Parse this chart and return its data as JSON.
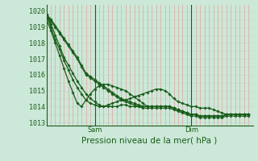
{
  "xlabel": "Pression niveau de la mer( hPa )",
  "bg_color": "#cce8d8",
  "line_color": "#1a5c1a",
  "grid_v_color": "#e89090",
  "grid_h_color": "#b8d8c8",
  "ylim": [
    1012.8,
    1020.4
  ],
  "xlim": [
    0,
    47
  ],
  "sam_x": 11,
  "dim_x": 33,
  "tick_fontsize": 6.0,
  "label_fontsize": 7.5,
  "lines": [
    [
      1019.8,
      1019.5,
      1019.1,
      1018.7,
      1018.3,
      1017.9,
      1017.5,
      1017.1,
      1016.6,
      1016.1,
      1015.9,
      1015.7,
      1015.5,
      1015.3,
      1015.1,
      1014.9,
      1014.7,
      1014.5,
      1014.4,
      1014.3,
      1014.2,
      1014.1,
      1014.0,
      1014.0,
      1014.0,
      1014.0,
      1014.0,
      1014.0,
      1014.0,
      1013.9,
      1013.8,
      1013.7,
      1013.6,
      1013.5,
      1013.5,
      1013.4,
      1013.4,
      1013.4,
      1013.4,
      1013.4,
      1013.4,
      1013.5,
      1013.5,
      1013.5,
      1013.5,
      1013.5,
      1013.5
    ],
    [
      1019.8,
      1019.4,
      1019.0,
      1018.6,
      1018.2,
      1017.8,
      1017.4,
      1017.0,
      1016.5,
      1016.0,
      1015.8,
      1015.6,
      1015.4,
      1015.2,
      1015.0,
      1014.8,
      1014.6,
      1014.4,
      1014.3,
      1014.2,
      1014.1,
      1014.0,
      1013.9,
      1013.9,
      1013.9,
      1013.9,
      1013.9,
      1013.9,
      1013.9,
      1013.8,
      1013.7,
      1013.6,
      1013.5,
      1013.4,
      1013.4,
      1013.3,
      1013.3,
      1013.3,
      1013.3,
      1013.3,
      1013.3,
      1013.4,
      1013.4,
      1013.4,
      1013.4,
      1013.4,
      1013.4
    ],
    [
      1019.8,
      1019.2,
      1018.5,
      1017.8,
      1017.1,
      1016.6,
      1016.1,
      1015.6,
      1015.2,
      1014.8,
      1014.5,
      1014.3,
      1014.1,
      1014.0,
      1014.0,
      1014.0,
      1014.0,
      1014.1,
      1014.1,
      1014.0,
      1014.0,
      1014.0,
      1014.0,
      1014.0,
      1014.0,
      1014.0,
      1014.0,
      1014.0,
      1014.0,
      1013.9,
      1013.8,
      1013.7,
      1013.6,
      1013.5,
      1013.5,
      1013.4,
      1013.4,
      1013.4,
      1013.4,
      1013.4,
      1013.4,
      1013.5,
      1013.5,
      1013.5,
      1013.5,
      1013.5,
      1013.5
    ],
    [
      1019.8,
      1019.0,
      1018.2,
      1017.6,
      1016.9,
      1016.3,
      1015.7,
      1015.2,
      1014.8,
      1014.4,
      1014.2,
      1014.1,
      1014.0,
      1014.0,
      1014.1,
      1014.2,
      1014.3,
      1014.4,
      1014.4,
      1014.5,
      1014.6,
      1014.7,
      1014.8,
      1014.9,
      1015.0,
      1015.1,
      1015.1,
      1015.0,
      1014.8,
      1014.5,
      1014.3,
      1014.2,
      1014.1,
      1014.0,
      1014.0,
      1013.9,
      1013.9,
      1013.9,
      1013.8,
      1013.7,
      1013.6,
      1013.5,
      1013.5,
      1013.5,
      1013.5,
      1013.5,
      1013.5
    ],
    [
      1019.5,
      1018.8,
      1018.0,
      1017.2,
      1016.4,
      1015.6,
      1014.9,
      1014.2,
      1014.0,
      1014.4,
      1014.8,
      1015.1,
      1015.3,
      1015.4,
      1015.4,
      1015.3,
      1015.2,
      1015.1,
      1015.0,
      1014.8,
      1014.6,
      1014.4,
      1014.2,
      1014.0,
      1014.0,
      1014.0,
      1014.0,
      1014.0,
      1014.0,
      1013.9,
      1013.8,
      1013.7,
      1013.6,
      1013.5,
      1013.5,
      1013.4,
      1013.4,
      1013.4,
      1013.4,
      1013.4,
      1013.4,
      1013.5,
      1013.5,
      1013.5,
      1013.5,
      1013.5,
      1013.5
    ]
  ]
}
